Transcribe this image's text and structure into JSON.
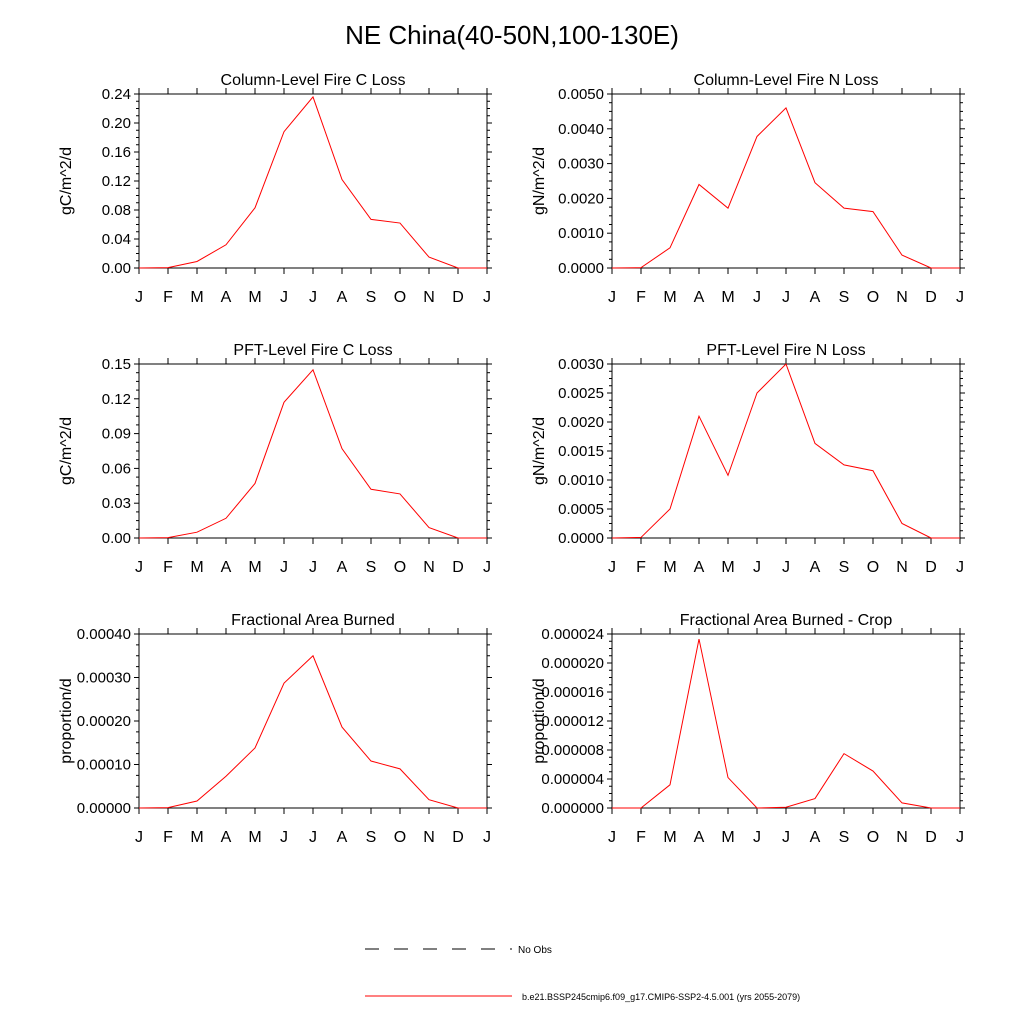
{
  "title": "NE China(40-50N,100-130E)",
  "colors": {
    "model_line": "#ff0000",
    "axis": "#000000",
    "obs_line": "#000000"
  },
  "legend": {
    "obs_label": "No Obs",
    "model_label": "b.e21.BSSP245cmip6.f09_g17.CMIP6-SSP2-4.5.001 (yrs 2055-2079)"
  },
  "chart_data": [
    {
      "type": "line",
      "title": "Column-Level Fire C Loss",
      "ylabel": "gC/m^2/d",
      "ylim": [
        0,
        0.24
      ],
      "yticks": [
        "0.00",
        "0.04",
        "0.08",
        "0.12",
        "0.16",
        "0.20",
        "0.24"
      ],
      "xticks": [
        "J",
        "F",
        "M",
        "A",
        "M",
        "J",
        "J",
        "A",
        "S",
        "O",
        "N",
        "D",
        "J"
      ],
      "series": [
        {
          "values": [
            0.0,
            0.0005,
            0.009,
            0.032,
            0.083,
            0.188,
            0.236,
            0.122,
            0.067,
            0.062,
            0.015,
            0.0,
            0.0
          ]
        }
      ]
    },
    {
      "type": "line",
      "title": "Column-Level Fire N Loss",
      "ylabel": "gN/m^2/d",
      "ylim": [
        0,
        0.005
      ],
      "yticks": [
        "0.0000",
        "0.0010",
        "0.0020",
        "0.0030",
        "0.0040",
        "0.0050"
      ],
      "xticks": [
        "J",
        "F",
        "M",
        "A",
        "M",
        "J",
        "J",
        "A",
        "S",
        "O",
        "N",
        "D",
        "J"
      ],
      "series": [
        {
          "values": [
            0.0,
            1e-05,
            0.00058,
            0.0024,
            0.00172,
            0.00378,
            0.0046,
            0.00245,
            0.00172,
            0.00162,
            0.00037,
            0.0,
            0.0
          ]
        }
      ]
    },
    {
      "type": "line",
      "title": "PFT-Level Fire C Loss",
      "ylabel": "gC/m^2/d",
      "ylim": [
        0,
        0.15
      ],
      "yticks": [
        "0.00",
        "0.03",
        "0.06",
        "0.09",
        "0.12",
        "0.15"
      ],
      "xticks": [
        "J",
        "F",
        "M",
        "A",
        "M",
        "J",
        "J",
        "A",
        "S",
        "O",
        "N",
        "D",
        "J"
      ],
      "series": [
        {
          "values": [
            0.0,
            0.0003,
            0.005,
            0.017,
            0.047,
            0.117,
            0.145,
            0.077,
            0.042,
            0.038,
            0.009,
            0.0,
            0.0
          ]
        }
      ]
    },
    {
      "type": "line",
      "title": "PFT-Level Fire N Loss",
      "ylabel": "gN/m^2/d",
      "ylim": [
        0,
        0.003
      ],
      "yticks": [
        "0.0000",
        "0.0005",
        "0.0010",
        "0.0015",
        "0.0020",
        "0.0025",
        "0.0030"
      ],
      "xticks": [
        "J",
        "F",
        "M",
        "A",
        "M",
        "J",
        "J",
        "A",
        "S",
        "O",
        "N",
        "D",
        "J"
      ],
      "series": [
        {
          "values": [
            0.0,
            1e-05,
            0.0005,
            0.0021,
            0.00108,
            0.0025,
            0.003,
            0.00163,
            0.00126,
            0.00116,
            0.00025,
            0.0,
            0.0
          ]
        }
      ]
    },
    {
      "type": "line",
      "title": "Fractional Area Burned",
      "ylabel": "proportion/d",
      "ylim": [
        0,
        0.0004
      ],
      "yticks": [
        "0.00000",
        "0.00010",
        "0.00020",
        "0.00030",
        "0.00040"
      ],
      "xticks": [
        "J",
        "F",
        "M",
        "A",
        "M",
        "J",
        "J",
        "A",
        "S",
        "O",
        "N",
        "D",
        "J"
      ],
      "series": [
        {
          "values": [
            0.0,
            1e-06,
            1.6e-05,
            7.3e-05,
            0.000138,
            0.000287,
            0.00035,
            0.000186,
            0.000108,
            9e-05,
            1.9e-05,
            0.0,
            0.0
          ]
        }
      ]
    },
    {
      "type": "line",
      "title": "Fractional Area Burned - Crop",
      "ylabel": "proportion/d",
      "ylim": [
        0,
        2.4e-05
      ],
      "yticks": [
        "0.000000",
        "0.000004",
        "0.000008",
        "0.000012",
        "0.000016",
        "0.000020",
        "0.000024"
      ],
      "xticks": [
        "J",
        "F",
        "M",
        "A",
        "M",
        "J",
        "J",
        "A",
        "S",
        "O",
        "N",
        "D",
        "J"
      ],
      "series": [
        {
          "values": [
            0.0,
            0.0,
            3.2e-06,
            2.33e-05,
            4.2e-06,
            0.0,
            1e-07,
            1.3e-06,
            7.5e-06,
            5.1e-06,
            7e-07,
            0.0,
            0.0
          ]
        }
      ]
    }
  ]
}
